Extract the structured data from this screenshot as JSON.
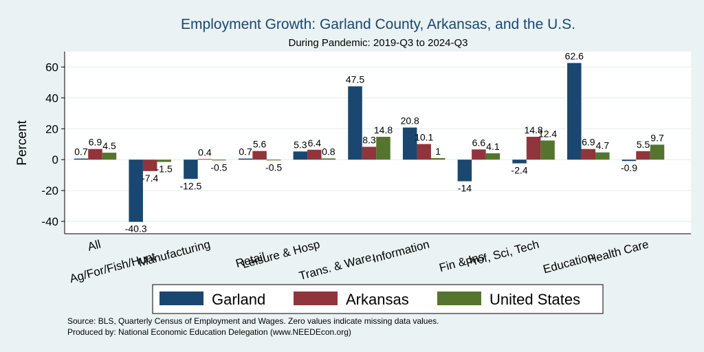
{
  "chart_data": {
    "type": "bar",
    "title": "Employment Growth: Garland County, Arkansas, and the U.S.",
    "subtitle": "During Pandemic: 2019-Q3 to 2024-Q3",
    "ylabel": "Percent",
    "xlabel": "",
    "ylim": [
      -48,
      70
    ],
    "yticks": [
      -40,
      -20,
      0,
      20,
      40,
      60
    ],
    "grid": true,
    "legend_position": "bottom",
    "categories": [
      "All",
      "Ag/For/Fish/Hunt",
      "Manufacturing",
      "Retail",
      "Leisure & Hosp",
      "Trans. & Ware.",
      "Information",
      "Fin & Ins",
      "Prof, Sci, Tech",
      "Education",
      "Health Care"
    ],
    "series": [
      {
        "name": "Garland",
        "color": "#1a476f",
        "values": [
          0.7,
          -40.3,
          -12.5,
          0.7,
          5.3,
          47.5,
          20.8,
          -14.0,
          -2.4,
          62.6,
          -0.9
        ]
      },
      {
        "name": "Arkansas",
        "color": "#90353b",
        "values": [
          6.9,
          -7.4,
          0.4,
          5.6,
          6.4,
          8.3,
          10.1,
          6.6,
          14.8,
          6.9,
          5.5
        ]
      },
      {
        "name": "United States",
        "color": "#55752f",
        "values": [
          4.5,
          -1.5,
          -0.5,
          -0.5,
          0.8,
          14.8,
          1.0,
          4.1,
          12.4,
          4.7,
          9.7
        ]
      }
    ]
  },
  "notes": {
    "source": "Source: BLS, Quarterly Census of Employment and Wages. Zero values indicate missing data values.",
    "produced": "Produced by: National Economic Education Delegation (www.NEEDEcon.org)"
  }
}
